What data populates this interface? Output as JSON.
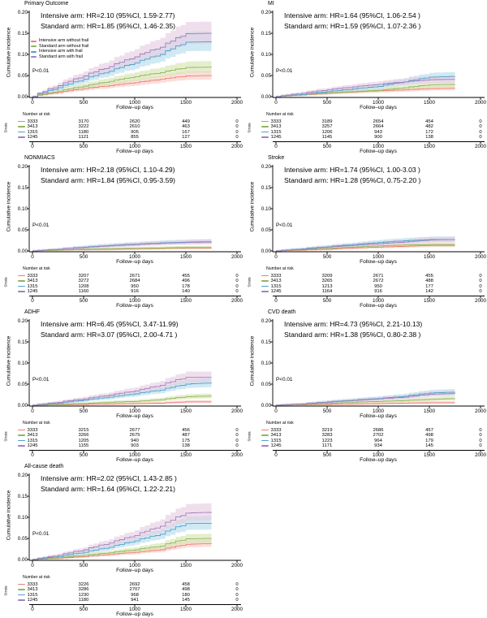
{
  "colors": {
    "red": {
      "line": "#ED8076",
      "band": "#F9C9C4"
    },
    "green": {
      "line": "#8FB65A",
      "band": "#D3E3AF"
    },
    "blue": {
      "line": "#4FA2CF",
      "band": "#B5DBEA"
    },
    "purple": {
      "line": "#A180BE",
      "band": "#E5CCE0"
    },
    "axis": "#000000"
  },
  "axes": {
    "ylabel": "Cumulative incidence",
    "xlabel": "Follow–up days",
    "y_ticks": [
      "0.20",
      "0.15",
      "0.10",
      "0.05",
      "0.00"
    ],
    "x_ticks": [
      "0",
      "500",
      "1000",
      "1500",
      "2000"
    ]
  },
  "legend": {
    "position": "inside-top-left",
    "items": [
      {
        "label": "Intensive arm without frail",
        "color": "red"
      },
      {
        "label": "Standard arm without frail",
        "color": "green"
      },
      {
        "label": "Intensive arm with frail",
        "color": "blue"
      },
      {
        "label": "Standard arm with frail",
        "color": "purple"
      }
    ]
  },
  "risk": {
    "header": "Number at risk",
    "strata": "Strata"
  },
  "chart_data": [
    {
      "type": "line",
      "title": "Primary Outcome",
      "annotation_intensive": "Intensive arm: HR=2.10 (95%CI, 1.59-2.77)",
      "annotation_standard": "Standard arm: HR=1.85 (95%CI, 1.46-2.35)",
      "pvalue": "P<0.01",
      "xlabel": "Follow–up days",
      "ylabel": "Cumulative incidence",
      "xlim": [
        0,
        2000
      ],
      "ylim": [
        0,
        0.2
      ],
      "has_legend": true,
      "x": [
        0,
        250,
        500,
        750,
        1000,
        1250,
        1500,
        1750
      ],
      "series": [
        {
          "name": "Intensive arm without frail",
          "color": "red",
          "values": [
            0,
            0.01,
            0.019,
            0.026,
            0.033,
            0.041,
            0.049,
            0.05
          ]
        },
        {
          "name": "Standard arm without frail",
          "color": "green",
          "values": [
            0,
            0.013,
            0.025,
            0.036,
            0.047,
            0.057,
            0.069,
            0.07
          ]
        },
        {
          "name": "Intensive arm with frail",
          "color": "blue",
          "values": [
            0,
            0.021,
            0.041,
            0.06,
            0.08,
            0.1,
            0.129,
            0.13
          ]
        },
        {
          "name": "Standard arm with frail",
          "color": "purple",
          "values": [
            0,
            0.026,
            0.049,
            0.071,
            0.094,
            0.117,
            0.149,
            0.15
          ]
        }
      ],
      "risk_rows": [
        {
          "color": "red",
          "counts": [
            "3333",
            "3170",
            "2620",
            "449",
            "0"
          ]
        },
        {
          "color": "green",
          "counts": [
            "3413",
            "3222",
            "2610",
            "463",
            "0"
          ]
        },
        {
          "color": "blue",
          "counts": [
            "1315",
            "1180",
            "905",
            "167",
            "0"
          ]
        },
        {
          "color": "purple",
          "counts": [
            "1245",
            "1121",
            "855",
            "127",
            "0"
          ]
        }
      ]
    },
    {
      "type": "line",
      "title": "MI",
      "annotation_intensive": "Intensive arm: HR=1.64 (95%CI, 1.06-2.54 )",
      "annotation_standard": "Standard arm: HR=1.59 (95%CI, 1.07-2.36 )",
      "pvalue": "P<0.01",
      "xlabel": "Follow–up days",
      "ylabel": "Cumulative incidence",
      "xlim": [
        0,
        2000
      ],
      "ylim": [
        0,
        0.2
      ],
      "has_legend": false,
      "x": [
        0,
        250,
        500,
        750,
        1000,
        1250,
        1500,
        1750
      ],
      "series": [
        {
          "name": "Intensive arm without frail",
          "color": "red",
          "values": [
            0,
            0.004,
            0.008,
            0.011,
            0.014,
            0.016,
            0.019,
            0.02
          ]
        },
        {
          "name": "Standard arm without frail",
          "color": "green",
          "values": [
            0,
            0.005,
            0.009,
            0.012,
            0.015,
            0.021,
            0.028,
            0.029
          ]
        },
        {
          "name": "Intensive arm with frail",
          "color": "blue",
          "values": [
            0,
            0.005,
            0.012,
            0.018,
            0.024,
            0.035,
            0.046,
            0.048
          ]
        },
        {
          "name": "Standard arm with frail",
          "color": "purple",
          "values": [
            0,
            0.008,
            0.016,
            0.023,
            0.029,
            0.035,
            0.04,
            0.041
          ]
        }
      ],
      "risk_rows": [
        {
          "color": "red",
          "counts": [
            "3333",
            "3189",
            "2654",
            "454",
            "0"
          ]
        },
        {
          "color": "green",
          "counts": [
            "3413",
            "3257",
            "2664",
            "482",
            "0"
          ]
        },
        {
          "color": "blue",
          "counts": [
            "1315",
            "1206",
            "943",
            "172",
            "0"
          ]
        },
        {
          "color": "purple",
          "counts": [
            "1245",
            "1145",
            "900",
            "138",
            "0"
          ]
        }
      ]
    },
    {
      "type": "line",
      "title": "NONMIACS",
      "annotation_intensive": "Intensive arm: HR=2.18 (95%CI, 1.10-4.29)",
      "annotation_standard": "Standard arm: HR=1.84 (95%CI, 0.95-3.59)",
      "pvalue": "P<0.01",
      "xlabel": "Follow–up days",
      "ylabel": "Cumulative incidence",
      "xlim": [
        0,
        2000
      ],
      "ylim": [
        0,
        0.2
      ],
      "has_legend": false,
      "x": [
        0,
        250,
        500,
        750,
        1000,
        1250,
        1500,
        1750
      ],
      "series": [
        {
          "name": "Intensive arm without frail",
          "color": "red",
          "values": [
            0,
            0.002,
            0.003,
            0.004,
            0.005,
            0.006,
            0.007,
            0.007
          ]
        },
        {
          "name": "Standard arm without frail",
          "color": "green",
          "values": [
            0,
            0.002,
            0.004,
            0.005,
            0.006,
            0.007,
            0.008,
            0.008
          ]
        },
        {
          "name": "Intensive arm with frail",
          "color": "blue",
          "values": [
            0,
            0.004,
            0.009,
            0.013,
            0.016,
            0.019,
            0.021,
            0.022
          ]
        },
        {
          "name": "Standard arm with frail",
          "color": "purple",
          "values": [
            0,
            0.004,
            0.008,
            0.012,
            0.015,
            0.018,
            0.02,
            0.021
          ]
        }
      ],
      "risk_rows": [
        {
          "color": "red",
          "counts": [
            "3333",
            "3207",
            "2671",
            "455",
            "0"
          ]
        },
        {
          "color": "green",
          "counts": [
            "3413",
            "3272",
            "2684",
            "496",
            "0"
          ]
        },
        {
          "color": "blue",
          "counts": [
            "1315",
            "1208",
            "950",
            "178",
            "0"
          ]
        },
        {
          "color": "purple",
          "counts": [
            "1245",
            "1160",
            "916",
            "140",
            "0"
          ]
        }
      ]
    },
    {
      "type": "line",
      "title": "Stroke",
      "annotation_intensive": "Intensive arm: HR=1.74 (95%CI, 1.00-3.03 )",
      "annotation_standard": "Standard arm: HR=1.28 (95%CI, 0.75-2.20 )",
      "pvalue": "P<0.01",
      "xlabel": "Follow–up days",
      "ylabel": "Cumulative incidence",
      "xlim": [
        0,
        2000
      ],
      "ylim": [
        0,
        0.2
      ],
      "has_legend": false,
      "x": [
        0,
        250,
        500,
        750,
        1000,
        1250,
        1500,
        1750
      ],
      "series": [
        {
          "name": "Intensive arm without frail",
          "color": "red",
          "values": [
            0,
            0.002,
            0.004,
            0.007,
            0.009,
            0.011,
            0.013,
            0.013
          ]
        },
        {
          "name": "Standard arm without frail",
          "color": "green",
          "values": [
            0,
            0.003,
            0.006,
            0.009,
            0.012,
            0.014,
            0.015,
            0.015
          ]
        },
        {
          "name": "Intensive arm with frail",
          "color": "blue",
          "values": [
            0,
            0.005,
            0.01,
            0.015,
            0.02,
            0.024,
            0.027,
            0.027
          ]
        },
        {
          "name": "Standard arm with frail",
          "color": "purple",
          "values": [
            0,
            0.004,
            0.009,
            0.013,
            0.017,
            0.021,
            0.026,
            0.027
          ]
        }
      ],
      "risk_rows": [
        {
          "color": "red",
          "counts": [
            "3333",
            "3209",
            "2671",
            "455",
            "0"
          ]
        },
        {
          "color": "green",
          "counts": [
            "3413",
            "3265",
            "2672",
            "488",
            "0"
          ]
        },
        {
          "color": "blue",
          "counts": [
            "1315",
            "1213",
            "950",
            "177",
            "0"
          ]
        },
        {
          "color": "purple",
          "counts": [
            "1245",
            "1164",
            "916",
            "142",
            "0"
          ]
        }
      ]
    },
    {
      "type": "line",
      "title": "ADHF",
      "annotation_intensive": "Intensive arm: HR=6.45 (95%CI, 3.47-11.99)",
      "annotation_standard": "Standard arm: HR=3.07 (95%CI, 2.00-4.71 )",
      "pvalue": "P<0.01",
      "xlabel": "Follow–up days",
      "ylabel": "Cumulative incidence",
      "xlim": [
        0,
        2000
      ],
      "ylim": [
        0,
        0.2
      ],
      "has_legend": false,
      "x": [
        0,
        250,
        500,
        750,
        1000,
        1250,
        1500,
        1750
      ],
      "series": [
        {
          "name": "Intensive arm without frail",
          "color": "red",
          "values": [
            0,
            0.001,
            0.002,
            0.003,
            0.004,
            0.005,
            0.008,
            0.008
          ]
        },
        {
          "name": "Standard arm without frail",
          "color": "green",
          "values": [
            0,
            0.002,
            0.004,
            0.007,
            0.009,
            0.013,
            0.02,
            0.022
          ]
        },
        {
          "name": "Intensive arm with frail",
          "color": "blue",
          "values": [
            0,
            0.005,
            0.012,
            0.019,
            0.027,
            0.036,
            0.05,
            0.053
          ]
        },
        {
          "name": "Standard arm with frail",
          "color": "purple",
          "values": [
            0,
            0.007,
            0.015,
            0.024,
            0.034,
            0.047,
            0.066,
            0.066
          ]
        }
      ],
      "risk_rows": [
        {
          "color": "red",
          "counts": [
            "3333",
            "3215",
            "2677",
            "456",
            "0"
          ]
        },
        {
          "color": "green",
          "counts": [
            "3413",
            "3266",
            "2675",
            "487",
            "0"
          ]
        },
        {
          "color": "blue",
          "counts": [
            "1315",
            "1205",
            "940",
            "175",
            "0"
          ]
        },
        {
          "color": "purple",
          "counts": [
            "1245",
            "1155",
            "903",
            "138",
            "0"
          ]
        }
      ]
    },
    {
      "type": "line",
      "title": "CVD death",
      "annotation_intensive": "Intensive arm: HR=4.73 (95%CI, 2.21-10.13)",
      "annotation_standard": "Standard arm: HR=1.38 (95%CI, 0.80-2.38 )",
      "pvalue": "P<0.01",
      "xlabel": "Follow–up days",
      "ylabel": "Cumulative incidence",
      "xlim": [
        0,
        2000
      ],
      "ylim": [
        0,
        0.2
      ],
      "has_legend": false,
      "x": [
        0,
        250,
        500,
        750,
        1000,
        1250,
        1500,
        1750
      ],
      "series": [
        {
          "name": "Intensive arm without frail",
          "color": "red",
          "values": [
            0,
            0.001,
            0.002,
            0.003,
            0.004,
            0.005,
            0.006,
            0.006
          ]
        },
        {
          "name": "Standard arm without frail",
          "color": "green",
          "values": [
            0,
            0.002,
            0.004,
            0.007,
            0.009,
            0.011,
            0.014,
            0.016
          ]
        },
        {
          "name": "Intensive arm with frail",
          "color": "blue",
          "values": [
            0,
            0.003,
            0.008,
            0.012,
            0.016,
            0.021,
            0.029,
            0.031
          ]
        },
        {
          "name": "Standard arm with frail",
          "color": "purple",
          "values": [
            0,
            0.003,
            0.007,
            0.011,
            0.015,
            0.019,
            0.026,
            0.028
          ]
        }
      ],
      "risk_rows": [
        {
          "color": "red",
          "counts": [
            "3333",
            "3219",
            "2686",
            "457",
            "0"
          ]
        },
        {
          "color": "green",
          "counts": [
            "3413",
            "3283",
            "2702",
            "498",
            "0"
          ]
        },
        {
          "color": "blue",
          "counts": [
            "1315",
            "1223",
            "964",
            "179",
            "0"
          ]
        },
        {
          "color": "purple",
          "counts": [
            "1245",
            "1171",
            "934",
            "145",
            "0"
          ]
        }
      ]
    },
    {
      "type": "line",
      "title": "All-cause death",
      "annotation_intensive": "Intensive arm: HR=2.02 (95%CI, 1.43-2.85 )",
      "annotation_standard": "Standard arm: HR=1.64 (95%CI, 1.22-2.21)",
      "pvalue": "P<0.01",
      "xlabel": "Follow–up days",
      "ylabel": "Cumulative incidence",
      "xlim": [
        0,
        2000
      ],
      "ylim": [
        0,
        0.2
      ],
      "has_legend": false,
      "x": [
        0,
        250,
        500,
        750,
        1000,
        1250,
        1500,
        1750
      ],
      "series": [
        {
          "name": "Intensive arm without frail",
          "color": "red",
          "values": [
            0,
            0.003,
            0.007,
            0.012,
            0.017,
            0.023,
            0.036,
            0.038
          ]
        },
        {
          "name": "Standard arm without frail",
          "color": "green",
          "values": [
            0,
            0.004,
            0.01,
            0.016,
            0.023,
            0.032,
            0.049,
            0.05
          ]
        },
        {
          "name": "Intensive arm with frail",
          "color": "blue",
          "values": [
            0,
            0.007,
            0.017,
            0.029,
            0.044,
            0.06,
            0.085,
            0.086
          ]
        },
        {
          "name": "Standard arm with frail",
          "color": "purple",
          "values": [
            0,
            0.01,
            0.023,
            0.039,
            0.057,
            0.079,
            0.11,
            0.112
          ]
        }
      ],
      "risk_rows": [
        {
          "color": "red",
          "counts": [
            "3333",
            "3226",
            "2692",
            "458",
            "0"
          ]
        },
        {
          "color": "green",
          "counts": [
            "3413",
            "3286",
            "2707",
            "498",
            "0"
          ]
        },
        {
          "color": "blue",
          "counts": [
            "1315",
            "1230",
            "968",
            "180",
            "0"
          ]
        },
        {
          "color": "purple",
          "counts": [
            "1245",
            "1180",
            "941",
            "145",
            "0"
          ]
        }
      ]
    }
  ]
}
